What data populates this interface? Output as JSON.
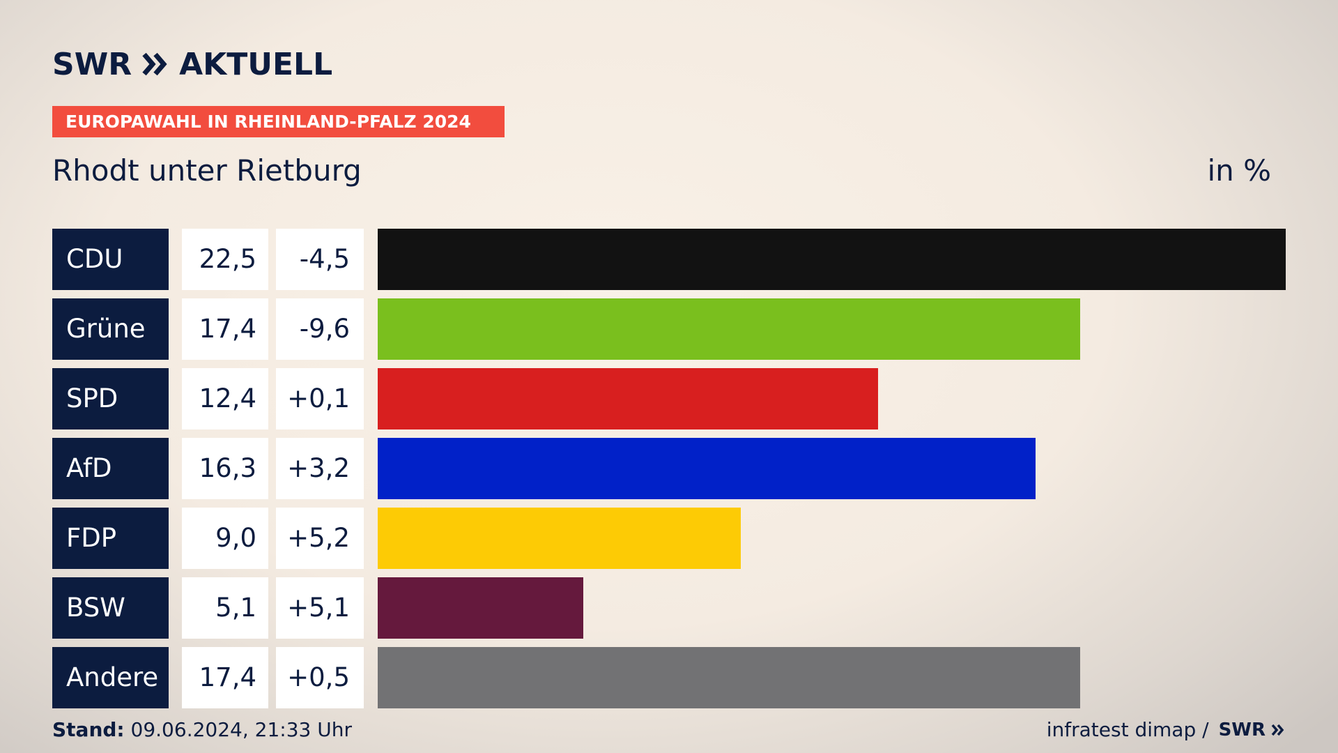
{
  "branding": {
    "logo_text": "SWR",
    "logo_suffix": "AKTUELL",
    "footer_logo": "SWR",
    "chevron_icon": "double-chevron-right-icon"
  },
  "event": {
    "label": "EUROPAWAHL IN RHEINLAND-PFALZ 2024"
  },
  "header": {
    "title": "Rhodt unter Rietburg",
    "unit": "in %"
  },
  "footer": {
    "stand_label": "Stand:",
    "stand_value": "09.06.2024, 21:33 Uhr",
    "source": "infratest dimap /"
  },
  "colors": {
    "brand_navy": "#0c1c3f",
    "event_tag": "#f24d3e"
  },
  "chart_data": {
    "type": "bar",
    "orientation": "horizontal",
    "title": "Rhodt unter Rietburg",
    "unit": "in %",
    "xlim": [
      0,
      22.5
    ],
    "categories": [
      "CDU",
      "Grüne",
      "SPD",
      "AfD",
      "FDP",
      "BSW",
      "Andere"
    ],
    "values": [
      22.5,
      17.4,
      12.4,
      16.3,
      9.0,
      5.1,
      17.4
    ],
    "value_labels": [
      "22,5",
      "17,4",
      "12,4",
      "16,3",
      "9,0",
      "5,1",
      "17,4"
    ],
    "changes": [
      -4.5,
      -9.6,
      0.1,
      3.2,
      5.2,
      5.1,
      0.5
    ],
    "change_labels": [
      "-4,5",
      "-9,6",
      "+0,1",
      "+3,2",
      "+5,2",
      "+5,1",
      "+0,5"
    ],
    "colors": [
      "#121212",
      "#7abf1e",
      "#d81f1f",
      "#0121c8",
      "#fdcb05",
      "#65193d",
      "#727274"
    ],
    "grid": false,
    "legend": "none"
  }
}
